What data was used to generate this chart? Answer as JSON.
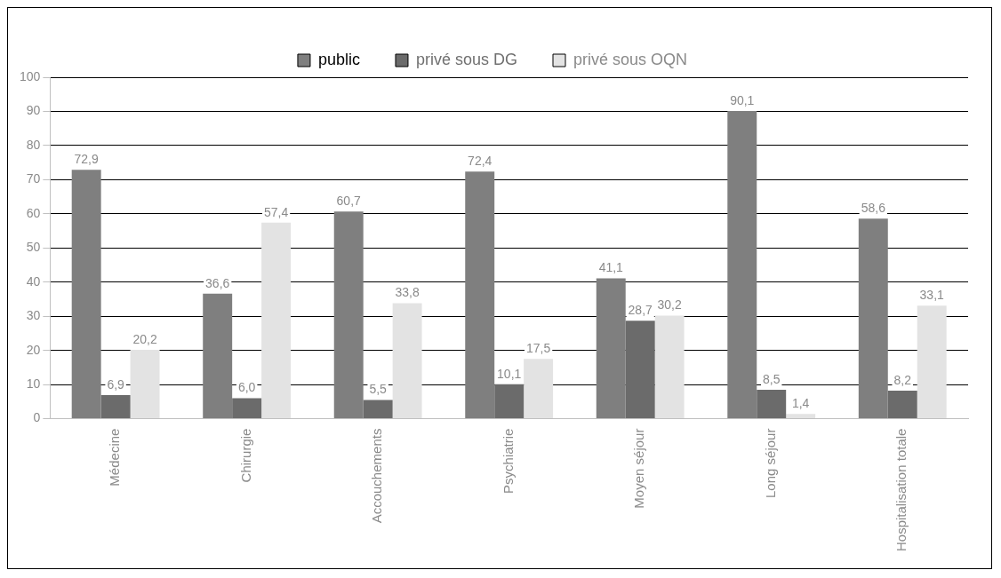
{
  "chart_data": {
    "type": "bar",
    "categories": [
      "Médecine",
      "Chirurgie",
      "Accouchements",
      "Psychiatrie",
      "Moyen séjour",
      "Long séjour",
      "Hospitalisation totale"
    ],
    "series": [
      {
        "name": "public",
        "color": "#7f7f7f",
        "values": [
          72.9,
          36.6,
          60.7,
          72.4,
          41.1,
          90.1,
          58.6
        ],
        "value_labels": [
          "72,9",
          "36,6",
          "60,7",
          "72,4",
          "41,1",
          "90,1",
          "58,6"
        ]
      },
      {
        "name": "privé sous DG",
        "color": "#6b6b6b",
        "values": [
          6.9,
          6.0,
          5.5,
          10.1,
          28.7,
          8.5,
          8.2
        ],
        "value_labels": [
          "6,9",
          "6,0",
          "5,5",
          "10,1",
          "28,7",
          "8,5",
          "8,2"
        ]
      },
      {
        "name": "privé sous OQN",
        "color": "#e3e3e3",
        "values": [
          20.2,
          57.4,
          33.8,
          17.5,
          30.2,
          1.4,
          33.1
        ],
        "value_labels": [
          "20,2",
          "57,4",
          "33,8",
          "17,5",
          "30,2",
          "1,4",
          "33,1"
        ]
      }
    ],
    "ylim": [
      0,
      100
    ],
    "yticks": [
      0,
      10,
      20,
      30,
      40,
      50,
      60,
      70,
      80,
      90,
      100
    ],
    "grid": "y",
    "legend": "top"
  }
}
